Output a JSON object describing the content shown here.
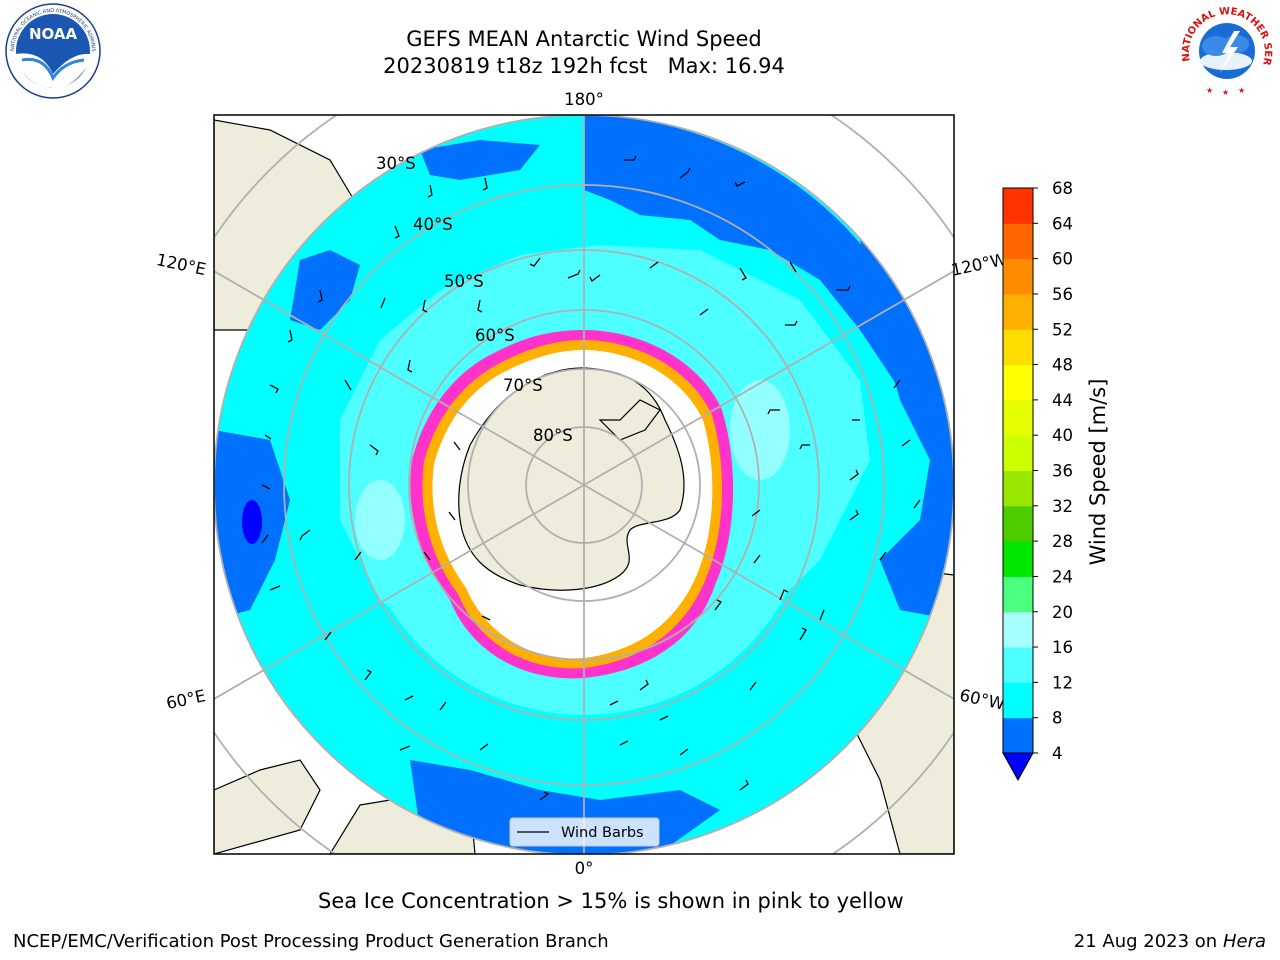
{
  "header": {
    "title_line1": "GEFS MEAN Antarctic Wind Speed",
    "title_line2": "20230819 t18z 192h fcst   Max: 16.94"
  },
  "logos": {
    "left": "NOAA",
    "left_ring": "NATIONAL OCEANIC AND ATMOSPHERIC ADMINISTRATION · U.S. DEPARTMENT OF COMMERCE",
    "right_ring": "NATIONAL WEATHER SERVICE"
  },
  "map": {
    "longitude_labels": [
      "180°",
      "120°E",
      "120°W",
      "60°E",
      "60°W",
      "0°"
    ],
    "latitude_labels": [
      "30°S",
      "40°S",
      "50°S",
      "60°S",
      "70°S",
      "80°S"
    ],
    "legend_label": "Wind Barbs"
  },
  "colorbar": {
    "label": "Wind Speed [m/s]",
    "ticks": [
      "4",
      "8",
      "12",
      "16",
      "20",
      "24",
      "28",
      "32",
      "36",
      "40",
      "44",
      "48",
      "52",
      "56",
      "60",
      "64",
      "68"
    ],
    "colors": [
      "#0070ff",
      "#00ffff",
      "#4dffff",
      "#a6ffff",
      "#4dff80",
      "#00e600",
      "#4dcc00",
      "#99e600",
      "#ccff00",
      "#e6ff00",
      "#ffff00",
      "#ffdd00",
      "#ffb000",
      "#ff8c00",
      "#ff6600",
      "#ff3300",
      "#ff0000"
    ],
    "under_color": "#0000ff"
  },
  "footer": {
    "caption": "Sea Ice Concentration > 15% is shown in pink to yellow",
    "credit": "NCEP/EMC/Verification Post Processing Product Generation Branch",
    "date": "21 Aug 2023 on",
    "host": "Hera"
  }
}
